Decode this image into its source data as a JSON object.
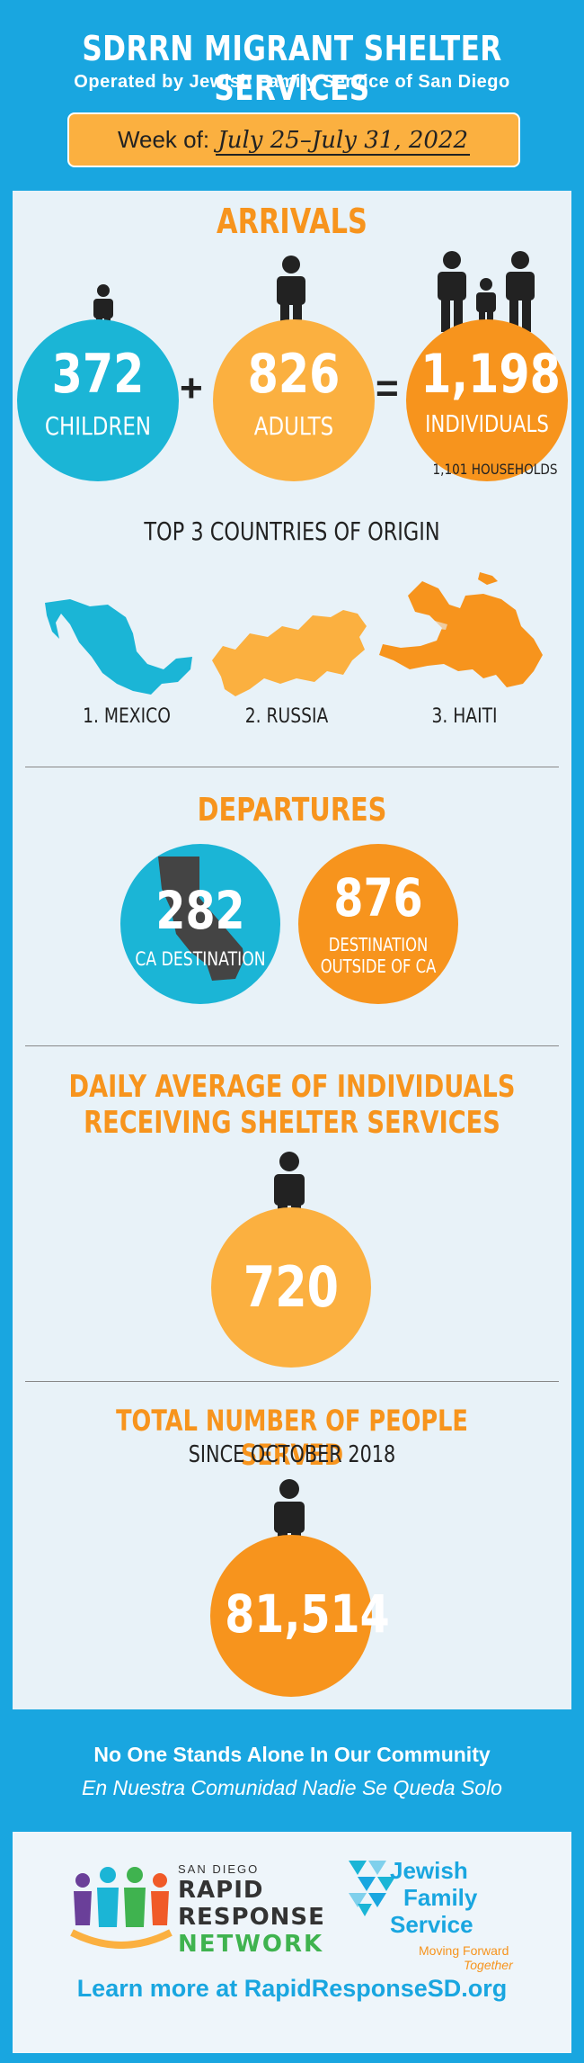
{
  "header": {
    "title": "SDRRN MIGRANT SHELTER SERVICES",
    "subtitle": "Operated by Jewish Family Service of San Diego",
    "week_label": "Week of:",
    "week_value": "July 25–July 31, 2022"
  },
  "arrivals": {
    "title": "ARRIVALS",
    "children_value": "372",
    "children_label": "CHILDREN",
    "plus": "+",
    "adults_value": "826",
    "adults_label": "ADULTS",
    "equals": "=",
    "individuals_value": "1,198",
    "individuals_label": "INDIVIDUALS",
    "households": "1,101 HOUSEHOLDS"
  },
  "countries": {
    "title": "TOP 3 COUNTRIES OF ORIGIN",
    "items": [
      "1. MEXICO",
      "2. RUSSIA",
      "3. HAITI"
    ]
  },
  "departures": {
    "title": "DEPARTURES",
    "ca_value": "282",
    "ca_label": "CA DESTINATION",
    "out_value": "876",
    "out_label_1": "DESTINATION",
    "out_label_2": "OUTSIDE OF CA"
  },
  "daily": {
    "title_1": "DAILY AVERAGE OF INDIVIDUALS",
    "title_2": "RECEIVING SHELTER SERVICES",
    "value": "720"
  },
  "total": {
    "title": "TOTAL NUMBER OF PEOPLE SERVED",
    "since": "SINCE OCTOBER 2018",
    "value": "81,514"
  },
  "tagline": {
    "en": "No One Stands Alone In Our Community",
    "es": "En Nuestra Comunidad Nadie Se Queda Solo"
  },
  "footer": {
    "rrn_small": "SAN DIEGO",
    "rrn_line1": "RAPID",
    "rrn_line2": "RESPONSE",
    "rrn_line3": "NETWORK",
    "jfs_line1": "Jewish",
    "jfs_line2": "Family",
    "jfs_line3": "Service",
    "jfs_tag1": "Moving Forward",
    "jfs_tag2": "Together",
    "learn_more": "Learn more at RapidResponseSD.org"
  },
  "colors": {
    "blue": "#19a6e0",
    "cyan": "#1bb5d6",
    "orange": "#f7941d",
    "yellow": "#fbb040"
  },
  "icons": [
    "person-icon",
    "family-icon",
    "mexico-map-icon",
    "russia-map-icon",
    "haiti-map-icon",
    "california-map-icon",
    "rrn-logo-icon",
    "jfs-logo-icon"
  ]
}
